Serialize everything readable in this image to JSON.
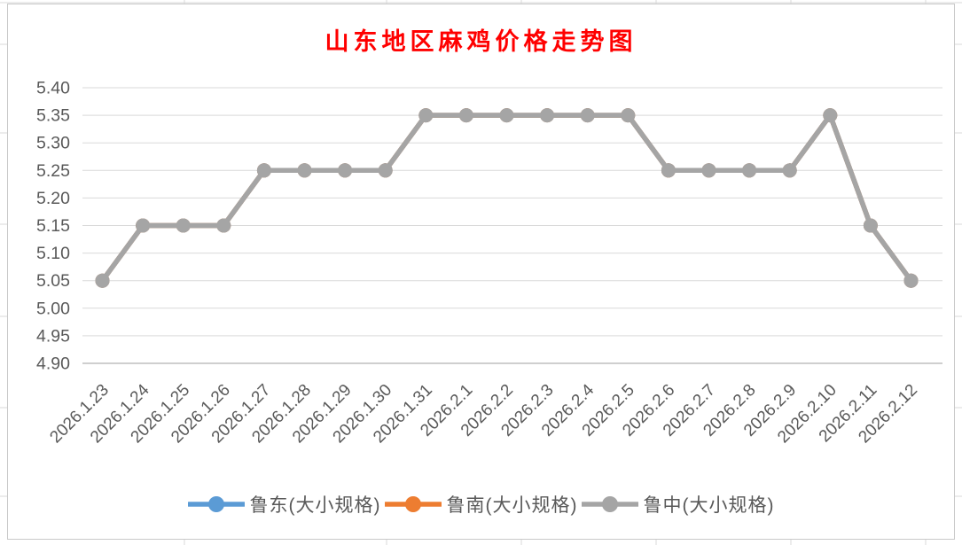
{
  "title": {
    "text": "山东地区麻鸡价格走势图",
    "color": "#FF0000"
  },
  "colors": {
    "grid_line": "#D9D9D9",
    "axis_line": "#BFBFBF",
    "tick_label": "#595959",
    "chart_border": "#C9C9C9",
    "spreadsheet_grid": "#D9D9D9"
  },
  "chart_data": {
    "type": "line",
    "title": "山东地区麻鸡价格走势图",
    "xlabel": "",
    "ylabel": "",
    "ylim": [
      4.9,
      5.4
    ],
    "ytick_step": 0.05,
    "ytick_labels": [
      "5.40",
      "5.35",
      "5.30",
      "5.25",
      "5.20",
      "5.15",
      "5.10",
      "5.05",
      "5.00",
      "4.95",
      "4.90"
    ],
    "grid": true,
    "legend_position": "bottom",
    "categories": [
      "2026.1.23",
      "2026.1.24",
      "2026.1.25",
      "2026.1.26",
      "2026.1.27",
      "2026.1.28",
      "2026.1.29",
      "2026.1.30",
      "2026.1.31",
      "2026.2.1",
      "2026.2.2",
      "2026.2.3",
      "2026.2.4",
      "2026.2.5",
      "2026.2.6",
      "2026.2.7",
      "2026.2.8",
      "2026.2.9",
      "2026.2.10",
      "2026.2.11",
      "2026.2.12"
    ],
    "series": [
      {
        "name": "鲁东(大小规格)",
        "color": "#5B9BD5",
        "values": [
          5.05,
          5.15,
          5.15,
          5.15,
          5.25,
          5.25,
          5.25,
          5.25,
          5.35,
          5.35,
          5.35,
          5.35,
          5.35,
          5.35,
          5.25,
          5.25,
          5.25,
          5.25,
          5.35,
          5.15,
          5.05
        ]
      },
      {
        "name": "鲁南(大小规格)",
        "color": "#ED7D31",
        "values": [
          5.05,
          5.15,
          5.15,
          5.15,
          5.25,
          5.25,
          5.25,
          5.25,
          5.35,
          5.35,
          5.35,
          5.35,
          5.35,
          5.35,
          5.25,
          5.25,
          5.25,
          5.25,
          5.35,
          5.15,
          5.05
        ]
      },
      {
        "name": "鲁中(大小规格)",
        "color": "#A5A5A5",
        "values": [
          5.05,
          5.15,
          5.15,
          5.15,
          5.25,
          5.25,
          5.25,
          5.25,
          5.35,
          5.35,
          5.35,
          5.35,
          5.35,
          5.35,
          5.25,
          5.25,
          5.25,
          5.25,
          5.35,
          5.15,
          5.05
        ]
      }
    ]
  }
}
